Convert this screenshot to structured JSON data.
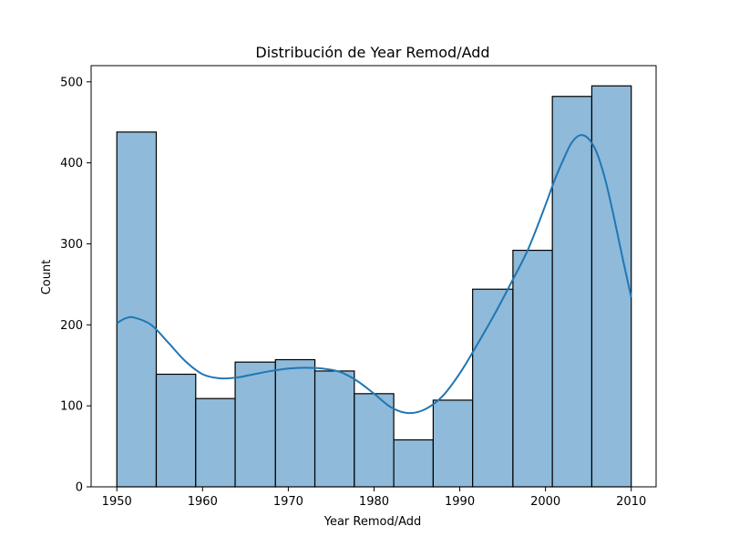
{
  "chart_data": {
    "type": "bar",
    "subtype": "histogram-with-kde",
    "title": "Distribución de Year Remod/Add",
    "xlabel": "Year Remod/Add",
    "ylabel": "Count",
    "xlim": [
      1947.0,
      2012.9
    ],
    "ylim": [
      0,
      520
    ],
    "xticks": [
      1950,
      1960,
      1970,
      1980,
      1990,
      2000,
      2010
    ],
    "yticks": [
      0,
      100,
      200,
      300,
      400,
      500
    ],
    "bins": [
      {
        "x0": 1950.0,
        "x1": 1954.6,
        "count": 438
      },
      {
        "x0": 1954.6,
        "x1": 1959.2,
        "count": 139
      },
      {
        "x0": 1959.2,
        "x1": 1963.8,
        "count": 109
      },
      {
        "x0": 1963.8,
        "x1": 1968.5,
        "count": 154
      },
      {
        "x0": 1968.5,
        "x1": 1973.1,
        "count": 157
      },
      {
        "x0": 1973.1,
        "x1": 1977.7,
        "count": 143
      },
      {
        "x0": 1977.7,
        "x1": 1982.3,
        "count": 115
      },
      {
        "x0": 1982.3,
        "x1": 1986.9,
        "count": 58
      },
      {
        "x0": 1986.9,
        "x1": 1991.5,
        "count": 107
      },
      {
        "x0": 1991.5,
        "x1": 1996.2,
        "count": 244
      },
      {
        "x0": 1996.2,
        "x1": 2000.8,
        "count": 292
      },
      {
        "x0": 2000.8,
        "x1": 2005.4,
        "count": 482
      },
      {
        "x0": 2005.4,
        "x1": 2010.0,
        "count": 495
      }
    ],
    "kde": {
      "x": [
        1950,
        1951,
        1952,
        1954,
        1956,
        1958,
        1960,
        1962,
        1964,
        1966,
        1968,
        1970,
        1972,
        1974,
        1976,
        1978,
        1980,
        1982,
        1984,
        1986,
        1988,
        1990,
        1992,
        1994,
        1996,
        1998,
        2000,
        2001,
        2002,
        2003,
        2004,
        2005,
        2006,
        2007,
        2008,
        2009,
        2010
      ],
      "y": [
        202,
        208,
        209,
        200,
        178,
        155,
        139,
        134,
        135,
        139,
        143,
        146,
        147,
        146,
        142,
        131,
        115,
        98,
        91,
        96,
        112,
        140,
        175,
        212,
        252,
        294,
        348,
        377,
        402,
        424,
        434,
        430,
        412,
        378,
        332,
        282,
        234
      ]
    },
    "colors": {
      "bar_fill": "#8fbad9",
      "bar_edge": "#000000",
      "kde_line": "#1f77b4"
    },
    "grid": false,
    "legend": "none"
  }
}
